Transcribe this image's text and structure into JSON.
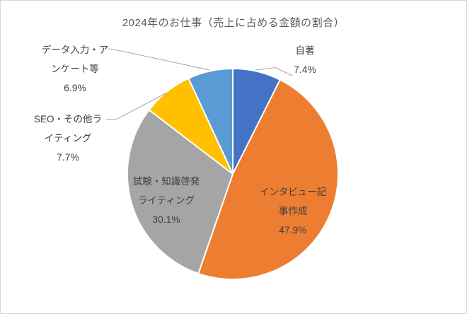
{
  "chart_data": {
    "type": "pie",
    "title": "2024年のお仕事（売上に占める金額の割合）",
    "labels": [
      "自著",
      "インタビュー記事作成",
      "試験・知識啓発ライティング",
      "SEO・その他ライティング",
      "データ入力・アンケート等"
    ],
    "values": [
      7.4,
      47.9,
      30.1,
      7.7,
      6.9
    ],
    "unit": "%",
    "direction": "clockwise",
    "start_angle_deg": 0,
    "legend_position": "none",
    "colors": [
      "#4472C4",
      "#ED7D31",
      "#A5A5A5",
      "#FFC000",
      "#5B9BD5"
    ],
    "slice_border_color": "#FFFFFF",
    "leader_line_color": "#A6A6A6",
    "label_text_color": "#404040",
    "title_color": "#595959"
  },
  "data_labels": [
    {
      "name_lines": [
        "自著"
      ],
      "value": "7.4%",
      "placement": "outside"
    },
    {
      "name_lines": [
        "インタビュー記",
        "事作成"
      ],
      "value": "47.9%",
      "placement": "inside"
    },
    {
      "name_lines": [
        "試験・知識啓発",
        "ライティング"
      ],
      "value": "30.1%",
      "placement": "inside"
    },
    {
      "name_lines": [
        "SEO・その他ラ",
        "イティング"
      ],
      "value": "7.7%",
      "placement": "outside"
    },
    {
      "name_lines": [
        "データ入力・ア",
        "ンケート等"
      ],
      "value": "6.9%",
      "placement": "outside"
    }
  ]
}
